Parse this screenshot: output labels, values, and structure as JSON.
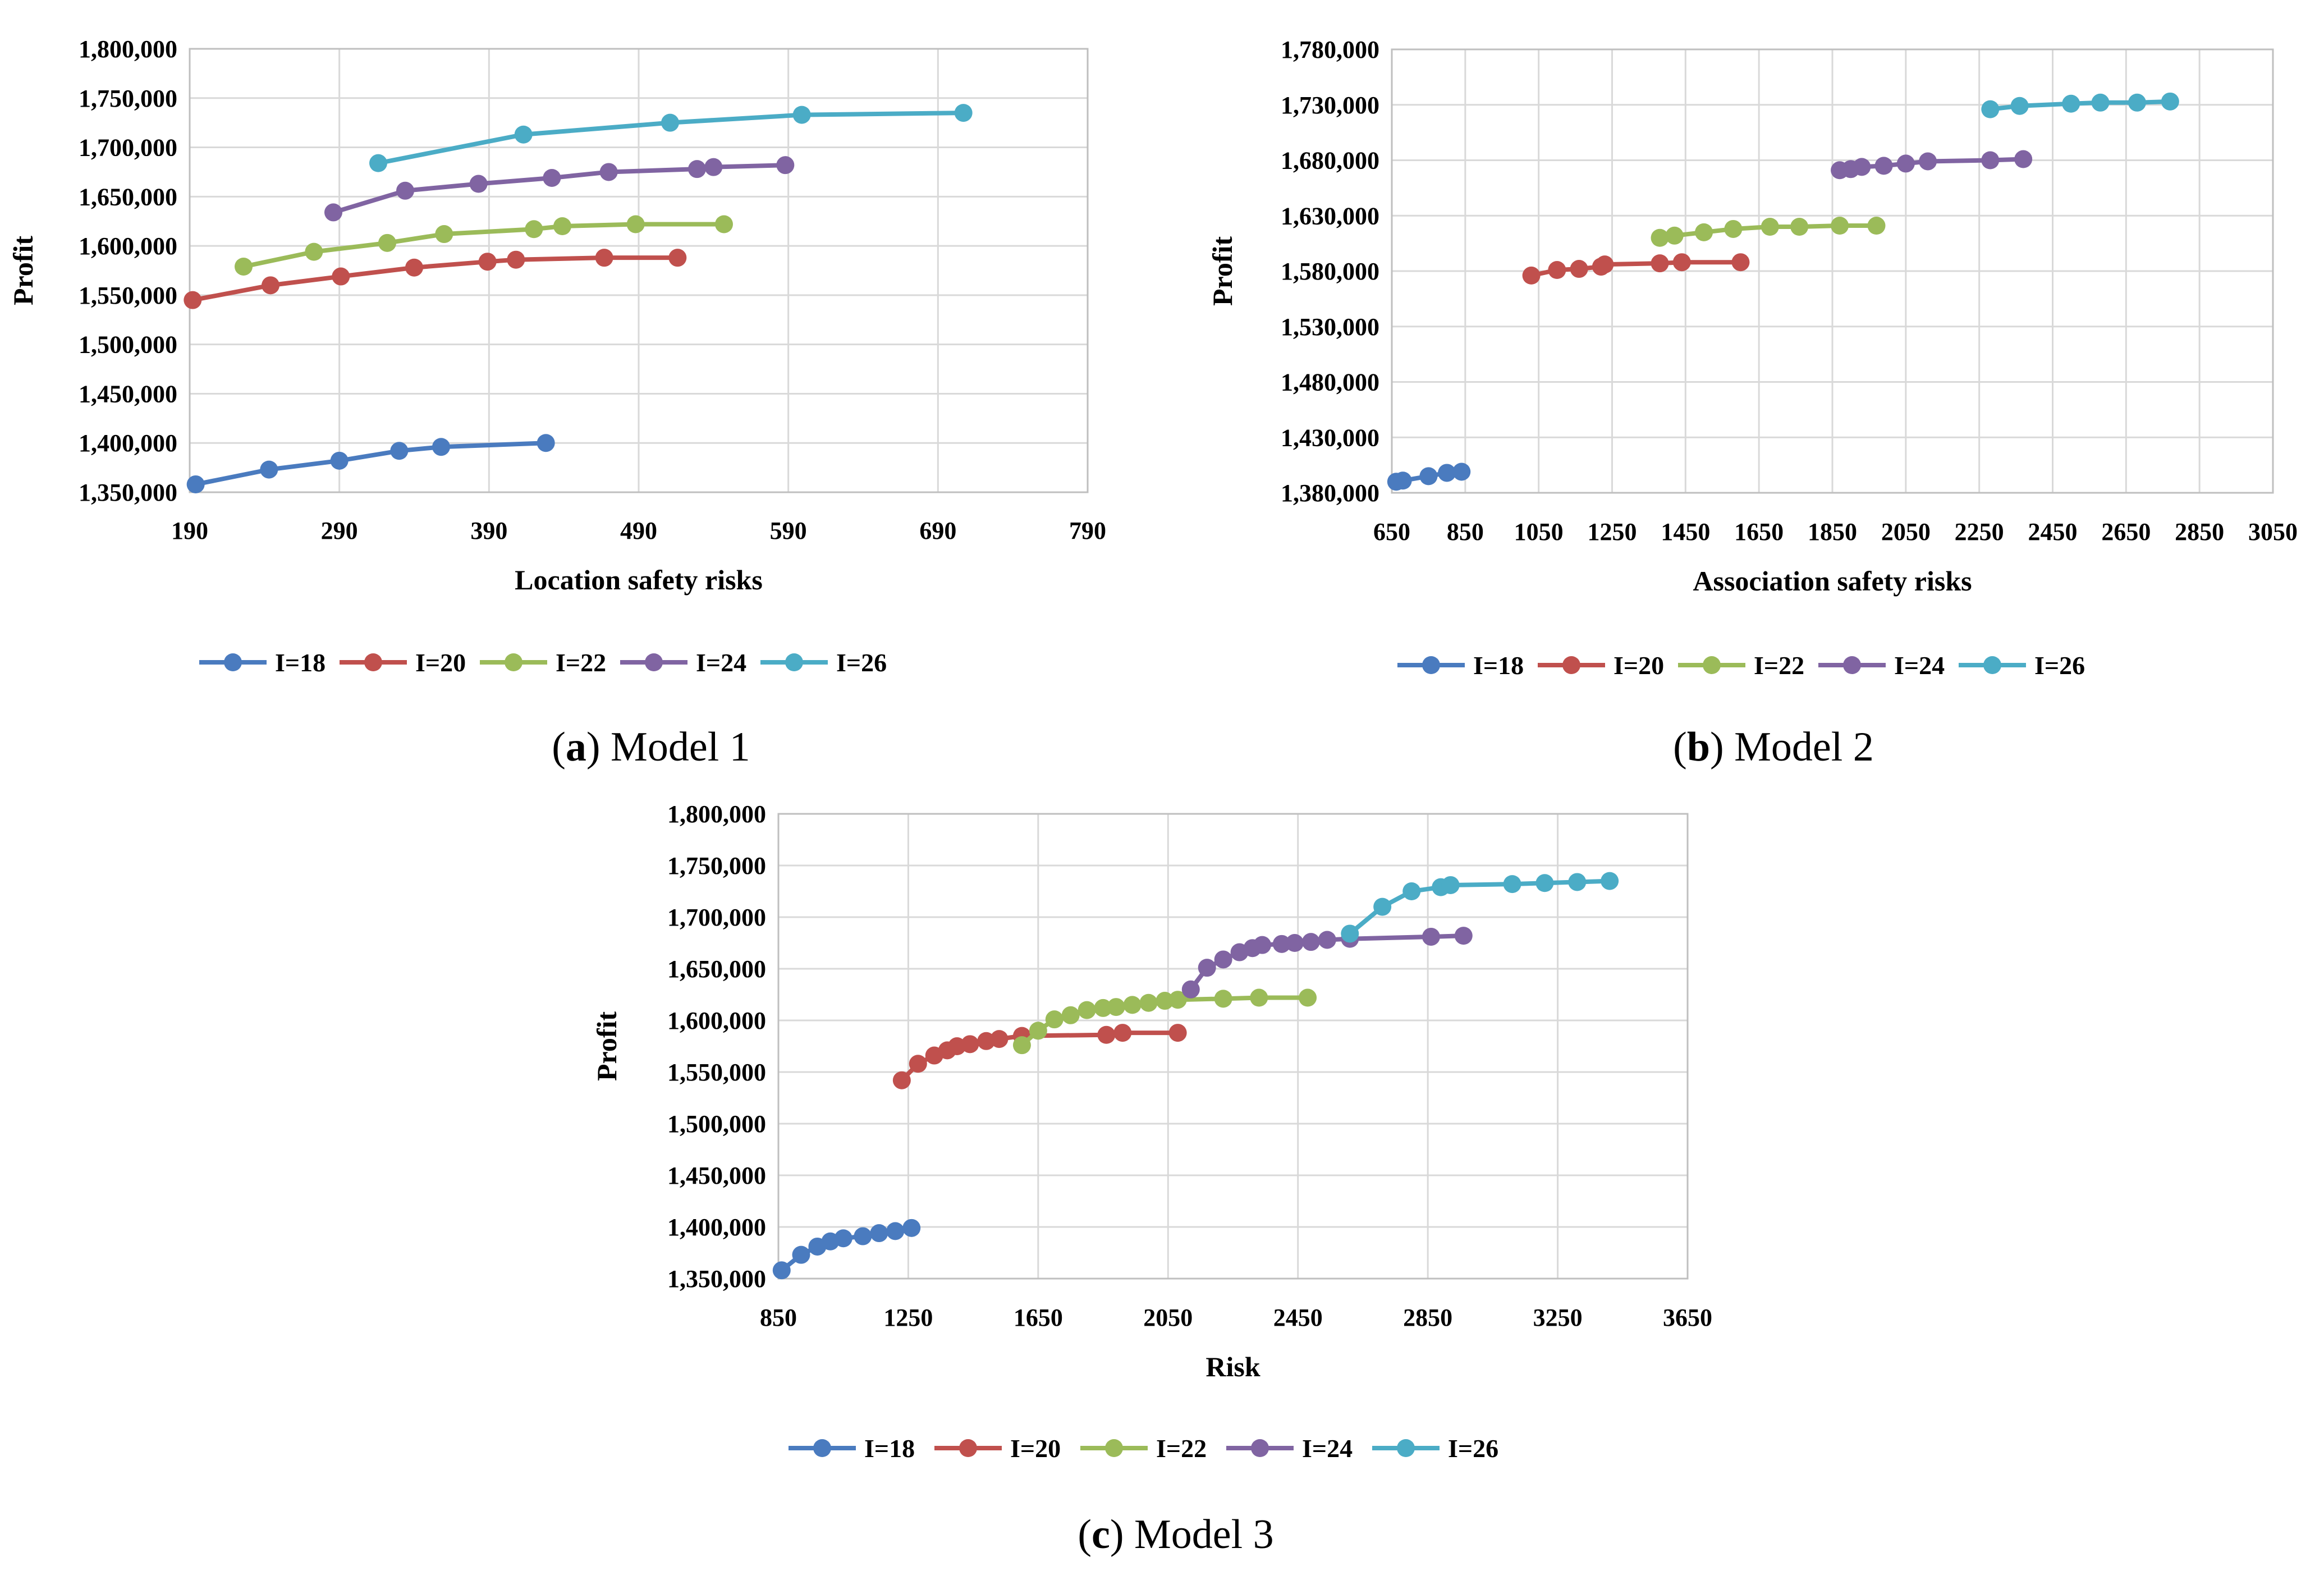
{
  "colors": {
    "I=18": "#4a7bbf",
    "I=20": "#c0504d",
    "I=22": "#9bbb59",
    "I=24": "#8064a2",
    "I=26": "#4bacc6",
    "grid": "#d9d9d9",
    "plot_border": "#bfbfbf"
  },
  "chart_data": [
    {
      "type": "line",
      "caption_letter": "a",
      "caption_text": "Model 1",
      "xlabel": "Location safety risks",
      "ylabel": "Profit",
      "xlim": [
        190,
        790
      ],
      "ylim": [
        1350000,
        1800000
      ],
      "xticks": [
        190,
        290,
        390,
        490,
        590,
        690,
        790
      ],
      "yticks": [
        1350000,
        1400000,
        1450000,
        1500000,
        1550000,
        1600000,
        1650000,
        1700000,
        1750000,
        1800000
      ],
      "xtick_labels": [
        "190",
        "290",
        "390",
        "490",
        "590",
        "690",
        "790"
      ],
      "ytick_labels": [
        "1,350,000",
        "1,400,000",
        "1,450,000",
        "1,500,000",
        "1,550,000",
        "1,600,000",
        "1,650,000",
        "1,700,000",
        "1,750,000",
        "1,800,000"
      ],
      "legend": [
        "I=18",
        "I=20",
        "I=22",
        "I=24",
        "I=26"
      ],
      "series": [
        {
          "name": "I=18",
          "x": [
            194,
            243,
            290,
            330,
            358,
            428
          ],
          "y": [
            1358000,
            1373000,
            1382000,
            1392000,
            1396000,
            1400000
          ]
        },
        {
          "name": "I=20",
          "x": [
            192,
            244,
            291,
            340,
            389,
            408,
            467,
            516
          ],
          "y": [
            1545000,
            1560000,
            1569000,
            1578000,
            1584000,
            1586000,
            1588000,
            1588000
          ]
        },
        {
          "name": "I=22",
          "x": [
            226,
            273,
            322,
            360,
            420,
            439,
            488,
            547
          ],
          "y": [
            1579000,
            1594000,
            1603000,
            1612000,
            1617000,
            1620000,
            1622000,
            1622000
          ]
        },
        {
          "name": "I=24",
          "x": [
            286,
            334,
            383,
            432,
            470,
            529,
            540,
            588
          ],
          "y": [
            1634000,
            1656000,
            1663000,
            1669000,
            1675000,
            1678000,
            1680000,
            1682000
          ]
        },
        {
          "name": "I=26",
          "x": [
            316,
            413,
            511,
            599,
            707
          ],
          "y": [
            1684000,
            1713000,
            1725000,
            1733000,
            1735000
          ]
        }
      ]
    },
    {
      "type": "line",
      "caption_letter": "b",
      "caption_text": "Model 2",
      "xlabel": "Association safety risks",
      "ylabel": "Profit",
      "xlim": [
        650,
        3050
      ],
      "ylim": [
        1380000,
        1780000
      ],
      "xticks": [
        650,
        850,
        1050,
        1250,
        1450,
        1650,
        1850,
        2050,
        2250,
        2450,
        2650,
        2850,
        3050
      ],
      "yticks": [
        1380000,
        1430000,
        1480000,
        1530000,
        1580000,
        1630000,
        1680000,
        1730000,
        1780000
      ],
      "xtick_labels": [
        "650",
        "850",
        "1050",
        "1250",
        "1450",
        "1650",
        "1850",
        "2050",
        "2250",
        "2450",
        "2650",
        "2850",
        "3050"
      ],
      "ytick_labels": [
        "1,380,000",
        "1,430,000",
        "1,480,000",
        "1,530,000",
        "1,580,000",
        "1,630,000",
        "1,680,000",
        "1,730,000",
        "1,780,000"
      ],
      "legend": [
        "I=18",
        "I=20",
        "I=22",
        "I=24",
        "I=26"
      ],
      "series": [
        {
          "name": "I=18",
          "x": [
            662,
            680,
            750,
            800,
            840
          ],
          "y": [
            1390000,
            1391000,
            1395000,
            1398000,
            1399000
          ]
        },
        {
          "name": "I=20",
          "x": [
            1030,
            1100,
            1160,
            1220,
            1230,
            1380,
            1440,
            1600
          ],
          "y": [
            1576000,
            1581000,
            1582000,
            1584000,
            1586000,
            1587000,
            1588000,
            1588000
          ]
        },
        {
          "name": "I=22",
          "x": [
            1380,
            1420,
            1500,
            1580,
            1680,
            1760,
            1870,
            1970
          ],
          "y": [
            1610000,
            1612000,
            1615000,
            1618000,
            1620000,
            1620000,
            1621000,
            1621000
          ]
        },
        {
          "name": "I=24",
          "x": [
            1870,
            1900,
            1930,
            1990,
            2050,
            2110,
            2280,
            2370
          ],
          "y": [
            1671000,
            1672000,
            1674000,
            1675000,
            1677000,
            1679000,
            1680000,
            1681000
          ]
        },
        {
          "name": "I=26",
          "x": [
            2280,
            2360,
            2500,
            2580,
            2680,
            2770
          ],
          "y": [
            1726000,
            1729000,
            1731000,
            1732000,
            1732000,
            1733000
          ]
        }
      ]
    },
    {
      "type": "line",
      "caption_letter": "c",
      "caption_text": "Model 3",
      "xlabel": "Risk",
      "ylabel": "Profit",
      "xlim": [
        850,
        3650
      ],
      "ylim": [
        1350000,
        1800000
      ],
      "xticks": [
        850,
        1250,
        1650,
        2050,
        2450,
        2850,
        3250,
        3650
      ],
      "yticks": [
        1350000,
        1400000,
        1450000,
        1500000,
        1550000,
        1600000,
        1650000,
        1700000,
        1750000,
        1800000
      ],
      "xtick_labels": [
        "850",
        "1250",
        "1650",
        "2050",
        "2450",
        "2850",
        "3250",
        "3650"
      ],
      "ytick_labels": [
        "1,350,000",
        "1,400,000",
        "1,450,000",
        "1,500,000",
        "1,550,000",
        "1,600,000",
        "1,650,000",
        "1,700,000",
        "1,750,000",
        "1,800,000"
      ],
      "legend": [
        "I=18",
        "I=20",
        "I=22",
        "I=24",
        "I=26"
      ],
      "series": [
        {
          "name": "I=18",
          "x": [
            860,
            920,
            970,
            1010,
            1050,
            1110,
            1160,
            1210,
            1260
          ],
          "y": [
            1358000,
            1373000,
            1381000,
            1386000,
            1389000,
            1391000,
            1394000,
            1396000,
            1399000
          ]
        },
        {
          "name": "I=20",
          "x": [
            1230,
            1280,
            1330,
            1370,
            1400,
            1440,
            1490,
            1530,
            1600,
            1860,
            1910,
            2080
          ],
          "y": [
            1542000,
            1558000,
            1566000,
            1571000,
            1575000,
            1577000,
            1580000,
            1582000,
            1585000,
            1586000,
            1588000,
            1588000
          ]
        },
        {
          "name": "I=22",
          "x": [
            1600,
            1650,
            1700,
            1750,
            1800,
            1850,
            1890,
            1940,
            1990,
            2040,
            2080,
            2220,
            2330,
            2480
          ],
          "y": [
            1576000,
            1590000,
            1601000,
            1605000,
            1610000,
            1612000,
            1613000,
            1615000,
            1617000,
            1619000,
            1620000,
            1621000,
            1622000,
            1622000
          ]
        },
        {
          "name": "I=24",
          "x": [
            2120,
            2170,
            2220,
            2270,
            2310,
            2340,
            2400,
            2440,
            2490,
            2540,
            2610,
            2860,
            2960
          ],
          "y": [
            1630000,
            1651000,
            1659000,
            1666000,
            1670000,
            1673000,
            1674000,
            1675000,
            1676000,
            1678000,
            1679000,
            1681000,
            1682000
          ]
        },
        {
          "name": "I=26",
          "x": [
            2610,
            2710,
            2800,
            2890,
            2920,
            3110,
            3210,
            3310,
            3410
          ],
          "y": [
            1684000,
            1710000,
            1725000,
            1729000,
            1731000,
            1732000,
            1733000,
            1734000,
            1735000
          ]
        }
      ]
    }
  ]
}
